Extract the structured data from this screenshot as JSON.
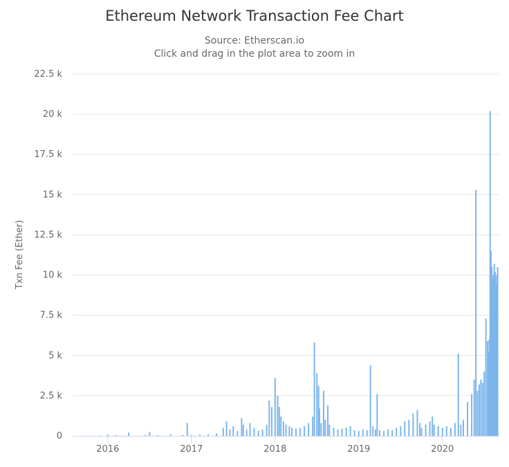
{
  "chart_data": {
    "type": "bar",
    "title": "Ethereum Network Transaction Fee Chart",
    "subtitle_source": "Source: Etherscan.io",
    "subtitle_hint": "Click and drag in the plot area to zoom in",
    "ylabel": "Txn Fee (Ether)",
    "xlabel": "",
    "xlim": [
      2015.58,
      2020.68
    ],
    "ylim": [
      0,
      22500
    ],
    "y_ticks": [
      {
        "value": 0,
        "label": "0"
      },
      {
        "value": 2500,
        "label": "2.5 k"
      },
      {
        "value": 5000,
        "label": "5 k"
      },
      {
        "value": 7500,
        "label": "7.5 k"
      },
      {
        "value": 10000,
        "label": "10 k"
      },
      {
        "value": 12500,
        "label": "12.5 k"
      },
      {
        "value": 15000,
        "label": "15 k"
      },
      {
        "value": 17500,
        "label": "17.5 k"
      },
      {
        "value": 20000,
        "label": "20 k"
      },
      {
        "value": 22500,
        "label": "22.5 k"
      }
    ],
    "x_ticks": [
      {
        "value": 2016,
        "label": "2016"
      },
      {
        "value": 2017,
        "label": "2017"
      },
      {
        "value": 2018,
        "label": "2018"
      },
      {
        "value": 2019,
        "label": "2019"
      },
      {
        "value": 2020,
        "label": "2020"
      }
    ],
    "grid": true,
    "legend": "none",
    "series_color": "#7cb5ec",
    "series": [
      {
        "x": [
          2015.9,
          2016.0,
          2016.1,
          2016.25,
          2016.45,
          2016.5,
          2016.6,
          2016.75,
          2016.9,
          2016.95,
          2017.0,
          2017.1,
          2017.2,
          2017.3,
          2017.38,
          2017.42,
          2017.46,
          2017.5,
          2017.55,
          2017.6,
          2017.62,
          2017.66,
          2017.7,
          2017.75,
          2017.8,
          2017.85,
          2017.9,
          2017.93,
          2017.96,
          2018.0,
          2018.03,
          2018.05,
          2018.07,
          2018.1,
          2018.13,
          2018.17,
          2018.2,
          2018.25,
          2018.3,
          2018.35,
          2018.4,
          2018.45,
          2018.47,
          2018.5,
          2018.52,
          2018.53,
          2018.55,
          2018.58,
          2018.6,
          2018.63,
          2018.65,
          2018.7,
          2018.75,
          2018.8,
          2018.85,
          2018.9,
          2018.95,
          2019.0,
          2019.05,
          2019.1,
          2019.14,
          2019.17,
          2019.2,
          2019.22,
          2019.25,
          2019.3,
          2019.35,
          2019.4,
          2019.45,
          2019.5,
          2019.55,
          2019.6,
          2019.65,
          2019.7,
          2019.73,
          2019.75,
          2019.8,
          2019.85,
          2019.88,
          2019.9,
          2019.95,
          2020.0,
          2020.05,
          2020.1,
          2020.15,
          2020.19,
          2020.22,
          2020.25,
          2020.3,
          2020.35,
          2020.38,
          2020.4,
          2020.42,
          2020.44,
          2020.46,
          2020.48,
          2020.5,
          2020.52,
          2020.54,
          2020.55,
          2020.56,
          2020.57,
          2020.58,
          2020.59,
          2020.6,
          2020.61,
          2020.62,
          2020.63,
          2020.64,
          2020.65,
          2020.66
        ],
        "y": [
          20,
          80,
          50,
          200,
          60,
          250,
          40,
          100,
          50,
          800,
          60,
          80,
          100,
          150,
          500,
          900,
          400,
          600,
          300,
          1100,
          700,
          400,
          800,
          500,
          300,
          400,
          700,
          2200,
          1800,
          3600,
          2500,
          1800,
          1200,
          900,
          700,
          600,
          500,
          450,
          500,
          600,
          800,
          1200,
          5800,
          3900,
          3100,
          1700,
          800,
          2800,
          1000,
          1900,
          700,
          500,
          400,
          450,
          500,
          600,
          350,
          300,
          400,
          350,
          4400,
          600,
          400,
          2600,
          350,
          300,
          400,
          350,
          500,
          600,
          900,
          1000,
          1400,
          1600,
          800,
          500,
          700,
          900,
          1200,
          700,
          600,
          500,
          600,
          500,
          800,
          5100,
          700,
          1000,
          2100,
          2600,
          3500,
          15300,
          2800,
          3200,
          3500,
          3300,
          4000,
          7300,
          5900,
          5200,
          6000,
          20200,
          11500,
          10500,
          9800,
          10000,
          10700,
          10200,
          9500,
          10000,
          10500
        ]
      }
    ]
  }
}
